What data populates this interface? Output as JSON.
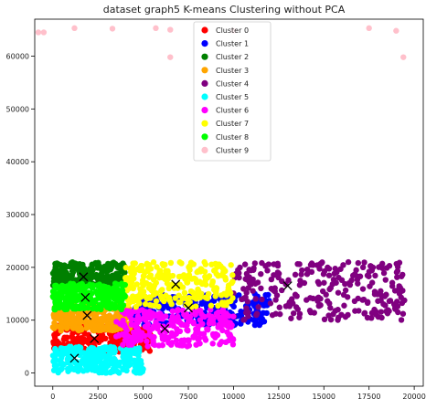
{
  "chart_data": {
    "type": "scatter",
    "title": "dataset graph5 K-means Clustering without  PCA",
    "xlabel": "",
    "ylabel": "",
    "xlim": [
      -1000,
      20500
    ],
    "ylim": [
      -2500,
      67000
    ],
    "xticks": [
      0,
      2500,
      5000,
      7500,
      10000,
      12500,
      15000,
      17500,
      20000
    ],
    "yticks": [
      0,
      10000,
      20000,
      30000,
      40000,
      50000,
      60000
    ],
    "legend_position": "top-center",
    "grid": false,
    "series": [
      {
        "name": "Cluster 0",
        "color": "#ff0000",
        "centroid": [
          2300,
          6500
        ],
        "region": {
          "x": [
            0,
            5500
          ],
          "y": [
            4000,
            9000
          ]
        }
      },
      {
        "name": "Cluster 1",
        "color": "#0000ff",
        "centroid": [
          7500,
          12300
        ],
        "region": {
          "x": [
            4500,
            12000
          ],
          "y": [
            9000,
            15000
          ]
        }
      },
      {
        "name": "Cluster 2",
        "color": "#008000",
        "centroid": [
          1700,
          18200
        ],
        "region": {
          "x": [
            0,
            4000
          ],
          "y": [
            16500,
            21000
          ]
        }
      },
      {
        "name": "Cluster 3",
        "color": "#ffa500",
        "centroid": [
          1900,
          10900
        ],
        "region": {
          "x": [
            0,
            4300
          ],
          "y": [
            8000,
            13000
          ]
        }
      },
      {
        "name": "Cluster 4",
        "color": "#800080",
        "centroid": [
          13000,
          16500
        ],
        "region": {
          "x": [
            10000,
            19500
          ],
          "y": [
            10000,
            21000
          ]
        }
      },
      {
        "name": "Cluster 5",
        "color": "#00ffff",
        "centroid": [
          1200,
          2800
        ],
        "region": {
          "x": [
            0,
            5000
          ],
          "y": [
            0,
            5000
          ]
        }
      },
      {
        "name": "Cluster 6",
        "color": "#ff00ff",
        "centroid": [
          6200,
          8400
        ],
        "region": {
          "x": [
            3500,
            10000
          ],
          "y": [
            5000,
            12000
          ]
        }
      },
      {
        "name": "Cluster 7",
        "color": "#ffff00",
        "centroid": [
          6800,
          16800
        ],
        "region": {
          "x": [
            4000,
            10000
          ],
          "y": [
            12500,
            21000
          ]
        }
      },
      {
        "name": "Cluster 8",
        "color": "#00ff00",
        "centroid": [
          1800,
          14300
        ],
        "region": {
          "x": [
            0,
            4000
          ],
          "y": [
            12000,
            17000
          ]
        }
      },
      {
        "name": "Cluster 9",
        "color": "#ffc0cb",
        "centroid": null,
        "points": [
          [
            -800,
            64500
          ],
          [
            -500,
            64500
          ],
          [
            1200,
            65300
          ],
          [
            3300,
            65200
          ],
          [
            5700,
            65300
          ],
          [
            6500,
            65000
          ],
          [
            6500,
            59800
          ],
          [
            10000,
            64800
          ],
          [
            17500,
            65300
          ],
          [
            19000,
            64800
          ],
          [
            19400,
            59800
          ]
        ]
      }
    ],
    "centroid_marker": "x",
    "centroid_color": "#000000"
  }
}
